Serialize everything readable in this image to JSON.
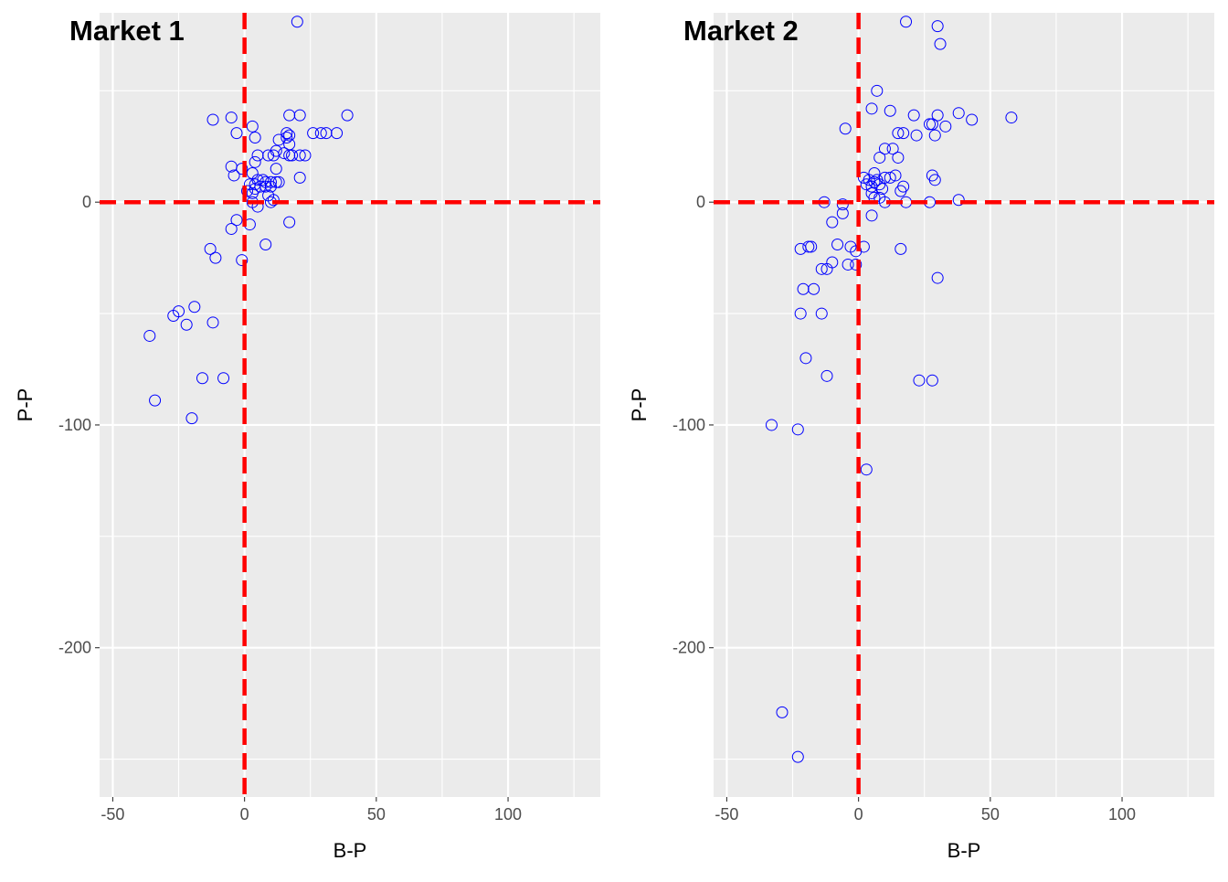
{
  "chart_data": [
    {
      "type": "scatter",
      "title": "Market 1",
      "xlabel": "B-P",
      "ylabel": "P-P",
      "xlim": [
        -55,
        135
      ],
      "ylim": [
        -267,
        85
      ],
      "xticks": [
        -50,
        0,
        50,
        100
      ],
      "yticks": [
        -200,
        -100,
        0
      ],
      "grid": true,
      "reference_lines": {
        "x": 0,
        "y": 0,
        "color": "#ff0000",
        "style": "dashed"
      },
      "point_color": "#0000ff",
      "points": [
        [
          20,
          81
        ],
        [
          -12,
          37
        ],
        [
          -5,
          38
        ],
        [
          -3,
          31
        ],
        [
          3,
          34
        ],
        [
          4,
          29
        ],
        [
          17,
          39
        ],
        [
          21,
          39
        ],
        [
          26,
          31
        ],
        [
          29,
          31
        ],
        [
          31,
          31
        ],
        [
          35,
          31
        ],
        [
          39,
          39
        ],
        [
          16,
          31
        ],
        [
          17,
          30
        ],
        [
          16,
          29
        ],
        [
          17,
          26
        ],
        [
          13,
          28
        ],
        [
          12,
          23
        ],
        [
          15,
          22
        ],
        [
          18,
          21
        ],
        [
          21,
          21
        ],
        [
          23,
          21
        ],
        [
          17,
          21
        ],
        [
          5,
          21
        ],
        [
          9,
          21
        ],
        [
          11,
          21
        ],
        [
          4,
          18
        ],
        [
          -5,
          16
        ],
        [
          -1,
          15
        ],
        [
          -4,
          12
        ],
        [
          12,
          15
        ],
        [
          21,
          11
        ],
        [
          3,
          13
        ],
        [
          5,
          10
        ],
        [
          7,
          10
        ],
        [
          8,
          9
        ],
        [
          10,
          9
        ],
        [
          12,
          9
        ],
        [
          13,
          9
        ],
        [
          2,
          8
        ],
        [
          4,
          8
        ],
        [
          6,
          7
        ],
        [
          8,
          7
        ],
        [
          10,
          7
        ],
        [
          4,
          6
        ],
        [
          1,
          5
        ],
        [
          3,
          4
        ],
        [
          9,
          3
        ],
        [
          3,
          0
        ],
        [
          10,
          0
        ],
        [
          11,
          1
        ],
        [
          5,
          -2
        ],
        [
          2,
          -10
        ],
        [
          -3,
          -8
        ],
        [
          -5,
          -12
        ],
        [
          17,
          -9
        ],
        [
          8,
          -19
        ],
        [
          -13,
          -21
        ],
        [
          -11,
          -25
        ],
        [
          -1,
          -26
        ],
        [
          -19,
          -47
        ],
        [
          -25,
          -49
        ],
        [
          -27,
          -51
        ],
        [
          -22,
          -55
        ],
        [
          -12,
          -54
        ],
        [
          -36,
          -60
        ],
        [
          -16,
          -79
        ],
        [
          -8,
          -79
        ],
        [
          -34,
          -89
        ],
        [
          -20,
          -97
        ]
      ]
    },
    {
      "type": "scatter",
      "title": "Market 2",
      "xlabel": "B-P",
      "ylabel": "P-P",
      "xlim": [
        -55,
        135
      ],
      "ylim": [
        -267,
        85
      ],
      "xticks": [
        -50,
        0,
        50,
        100
      ],
      "yticks": [
        -200,
        -100,
        0
      ],
      "grid": true,
      "reference_lines": {
        "x": 0,
        "y": 0,
        "color": "#ff0000",
        "style": "dashed"
      },
      "point_color": "#0000ff",
      "points": [
        [
          18,
          81
        ],
        [
          30,
          79
        ],
        [
          31,
          71
        ],
        [
          7,
          50
        ],
        [
          5,
          42
        ],
        [
          12,
          41
        ],
        [
          21,
          39
        ],
        [
          30,
          39
        ],
        [
          38,
          40
        ],
        [
          43,
          37
        ],
        [
          58,
          38
        ],
        [
          -5,
          33
        ],
        [
          27,
          35
        ],
        [
          28,
          35
        ],
        [
          33,
          34
        ],
        [
          15,
          31
        ],
        [
          17,
          31
        ],
        [
          22,
          30
        ],
        [
          29,
          30
        ],
        [
          10,
          24
        ],
        [
          13,
          24
        ],
        [
          8,
          20
        ],
        [
          15,
          20
        ],
        [
          6,
          13
        ],
        [
          10,
          11
        ],
        [
          12,
          11
        ],
        [
          14,
          12
        ],
        [
          2,
          11
        ],
        [
          4,
          10
        ],
        [
          6,
          9
        ],
        [
          7,
          10
        ],
        [
          8,
          8
        ],
        [
          3,
          8
        ],
        [
          5,
          7
        ],
        [
          9,
          6
        ],
        [
          16,
          5
        ],
        [
          17,
          7
        ],
        [
          28,
          12
        ],
        [
          29,
          10
        ],
        [
          5,
          4
        ],
        [
          6,
          2
        ],
        [
          8,
          2
        ],
        [
          10,
          0
        ],
        [
          -13,
          0
        ],
        [
          -6,
          -1
        ],
        [
          18,
          0
        ],
        [
          27,
          0
        ],
        [
          38,
          1
        ],
        [
          -6,
          -5
        ],
        [
          5,
          -6
        ],
        [
          -10,
          -9
        ],
        [
          -22,
          -21
        ],
        [
          -19,
          -20
        ],
        [
          -18,
          -20
        ],
        [
          -8,
          -19
        ],
        [
          -3,
          -20
        ],
        [
          2,
          -20
        ],
        [
          16,
          -21
        ],
        [
          -1,
          -22
        ],
        [
          -10,
          -27
        ],
        [
          -4,
          -28
        ],
        [
          -1,
          -28
        ],
        [
          -14,
          -30
        ],
        [
          -12,
          -30
        ],
        [
          30,
          -34
        ],
        [
          -21,
          -39
        ],
        [
          -17,
          -39
        ],
        [
          -22,
          -50
        ],
        [
          -14,
          -50
        ],
        [
          -20,
          -70
        ],
        [
          -12,
          -78
        ],
        [
          23,
          -80
        ],
        [
          28,
          -80
        ],
        [
          -33,
          -100
        ],
        [
          -23,
          -102
        ],
        [
          3,
          -120
        ],
        [
          -29,
          -229
        ],
        [
          -23,
          -249
        ]
      ]
    }
  ]
}
